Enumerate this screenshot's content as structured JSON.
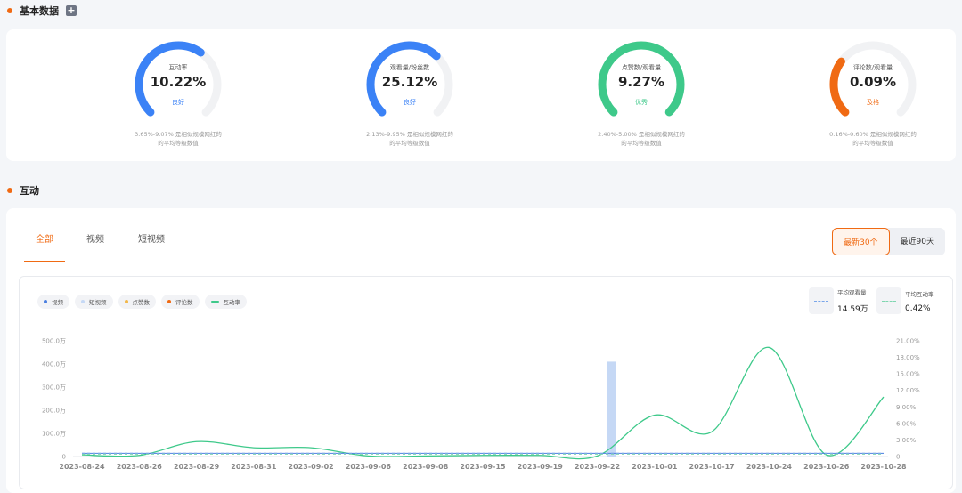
{
  "section1": {
    "title": "基本数据"
  },
  "metrics": [
    {
      "label": "互动率",
      "value": "10.22%",
      "grade": "良好",
      "note1": "3.65%-9.07% 是相似规模网红的",
      "note2": "的平均等级数值",
      "color": "#3b82f6",
      "grade_color": "#3b82f6",
      "fraction": 0.63
    },
    {
      "label": "观看量/粉丝数",
      "value": "25.12%",
      "grade": "良好",
      "note1": "2.13%-9.95% 是相似规模网红的",
      "note2": "的平均等级数值",
      "color": "#3b82f6",
      "grade_color": "#3b82f6",
      "fraction": 0.66
    },
    {
      "label": "点赞数/观看量",
      "value": "9.27%",
      "grade": "优秀",
      "note1": "2.40%-5.00% 是相似规模网红的",
      "note2": "的平均等级数值",
      "color": "#3ec98a",
      "grade_color": "#3ec98a",
      "fraction": 1.0
    },
    {
      "label": "评论数/观看量",
      "value": "0.09%",
      "grade": "及格",
      "note1": "0.16%-0.60% 是相似规模网红的",
      "note2": "的平均等级数值",
      "color": "#f06a13",
      "grade_color": "#f06a13",
      "fraction": 0.3
    }
  ],
  "section2": {
    "title": "互动"
  },
  "tabs": [
    "全部",
    "视频",
    "短视频"
  ],
  "range": [
    "最新30个",
    "最近90天"
  ],
  "legend": [
    {
      "label": "视频",
      "color": "#4a7fe0",
      "kind": "dot"
    },
    {
      "label": "短视频",
      "color": "#c5d8f5",
      "kind": "dot"
    },
    {
      "label": "点赞数",
      "color": "#f2b84b",
      "kind": "dot"
    },
    {
      "label": "评论数",
      "color": "#f06a13",
      "kind": "dot"
    },
    {
      "label": "互动率",
      "color": "#3ec98a",
      "kind": "line"
    }
  ],
  "avg": [
    {
      "label": "平均观看量",
      "value": "14.59万",
      "color": "#7aa6ea"
    },
    {
      "label": "平均互动率",
      "value": "0.42%",
      "color": "#7fd6b0"
    }
  ],
  "chart_data": {
    "type": "bar",
    "x": [
      "2023-08-24",
      "2023-08-26",
      "2023-08-29",
      "2023-08-31",
      "2023-09-02",
      "2023-09-06",
      "2023-09-08",
      "2023-09-15",
      "2023-09-19",
      "2023-09-22",
      "2023-10-01",
      "2023-10-17",
      "2023-10-24",
      "2023-10-26",
      "2023-10-28"
    ],
    "left_ticks": [
      "0",
      "100.0万",
      "200.0万",
      "300.0万",
      "400.0万",
      "500.0万"
    ],
    "right_ticks": [
      "0",
      "3.00%",
      "6.00%",
      "9.00%",
      "12.00%",
      "15.00%",
      "18.00%",
      "21.00%"
    ],
    "ylim_left": [
      0,
      500
    ],
    "ylim_right": [
      0,
      21
    ],
    "series": [
      {
        "name": "短视频",
        "type": "bar",
        "points": [
          [
            9.25,
            410
          ]
        ]
      },
      {
        "name": "视频",
        "type": "line",
        "values": [
          14,
          14,
          14,
          14,
          14,
          14,
          14,
          14,
          14,
          14,
          14,
          14,
          14,
          14,
          14
        ]
      },
      {
        "name": "互动率",
        "type": "line",
        "values": [
          0.3,
          0.2,
          2.7,
          1.6,
          1.6,
          0.1,
          0.1,
          0.2,
          0.2,
          0.1,
          7.5,
          4.5,
          19.8,
          0.3,
          10.8
        ]
      }
    ],
    "avg_lines": {
      "views_wan": 14.59,
      "rate_percent": 0.42
    }
  }
}
